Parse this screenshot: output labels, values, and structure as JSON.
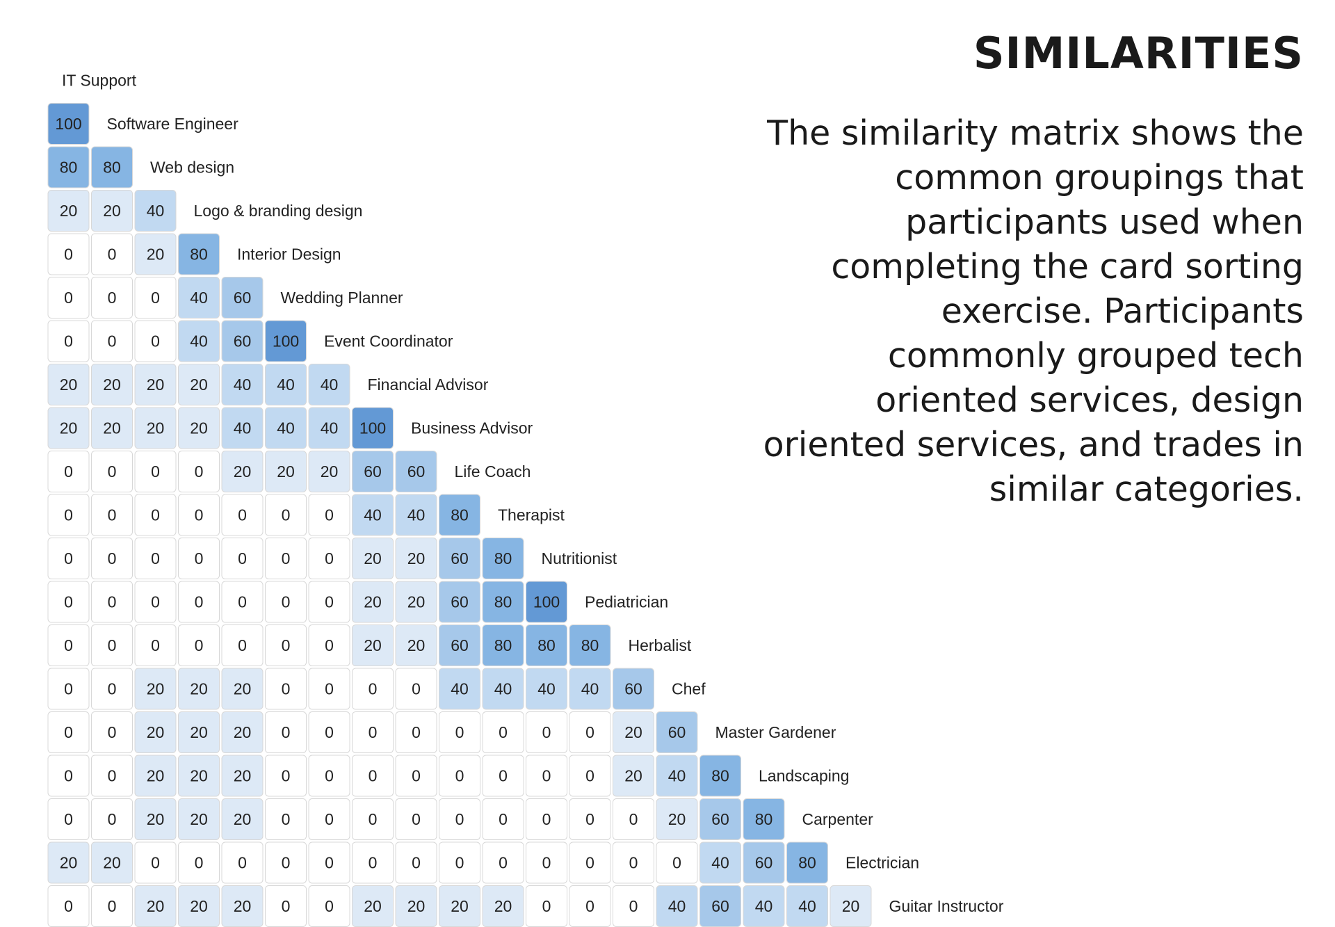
{
  "title": "SIMILARITIES",
  "description": "The similarity matrix shows the common groupings that participants used when completing the card sorting exercise. Participants commonly grouped tech oriented services, design oriented services, and trades in similar categories.",
  "colors": {
    "scale": [
      "#ffffff",
      "#dde9f6",
      "#c1d9f1",
      "#a6c8ea",
      "#86b5e3",
      "#6399d5"
    ],
    "cell_border": "#d8d8d8",
    "text": "#222222"
  },
  "chart_data": {
    "type": "heatmap",
    "title": "",
    "labels": [
      "IT Support",
      "Software Engineer",
      "Web design",
      "Logo & branding design",
      "Interior Design",
      "Wedding Planner",
      "Event Coordinator",
      "Financial Advisor",
      "Business Advisor",
      "Life Coach",
      "Therapist",
      "Nutritionist",
      "Pediatrician",
      "Herbalist",
      "Chef",
      "Master Gardener",
      "Landscaping",
      "Carpenter",
      "Electrician",
      "Guitar Instructor"
    ],
    "values": [
      [],
      [
        100
      ],
      [
        80,
        80
      ],
      [
        20,
        20,
        40
      ],
      [
        0,
        0,
        20,
        80
      ],
      [
        0,
        0,
        0,
        40,
        60
      ],
      [
        0,
        0,
        0,
        40,
        60,
        100
      ],
      [
        20,
        20,
        20,
        20,
        40,
        40,
        40
      ],
      [
        20,
        20,
        20,
        20,
        40,
        40,
        40,
        100
      ],
      [
        0,
        0,
        0,
        0,
        20,
        20,
        20,
        60,
        60
      ],
      [
        0,
        0,
        0,
        0,
        0,
        0,
        0,
        40,
        40,
        80
      ],
      [
        0,
        0,
        0,
        0,
        0,
        0,
        0,
        20,
        20,
        60,
        80
      ],
      [
        0,
        0,
        0,
        0,
        0,
        0,
        0,
        20,
        20,
        60,
        80,
        100
      ],
      [
        0,
        0,
        0,
        0,
        0,
        0,
        0,
        20,
        20,
        60,
        80,
        80,
        80
      ],
      [
        0,
        0,
        20,
        20,
        20,
        0,
        0,
        0,
        0,
        40,
        40,
        40,
        40,
        60
      ],
      [
        0,
        0,
        20,
        20,
        20,
        0,
        0,
        0,
        0,
        0,
        0,
        0,
        0,
        20,
        60
      ],
      [
        0,
        0,
        20,
        20,
        20,
        0,
        0,
        0,
        0,
        0,
        0,
        0,
        0,
        20,
        40,
        80
      ],
      [
        0,
        0,
        20,
        20,
        20,
        0,
        0,
        0,
        0,
        0,
        0,
        0,
        0,
        0,
        20,
        60,
        80
      ],
      [
        20,
        20,
        0,
        0,
        0,
        0,
        0,
        0,
        0,
        0,
        0,
        0,
        0,
        0,
        0,
        40,
        60,
        80
      ],
      [
        0,
        0,
        20,
        20,
        20,
        0,
        0,
        20,
        20,
        20,
        20,
        0,
        0,
        0,
        40,
        60,
        40,
        40,
        20
      ]
    ],
    "value_range": [
      0,
      100
    ],
    "grid": true,
    "legend": "none"
  }
}
